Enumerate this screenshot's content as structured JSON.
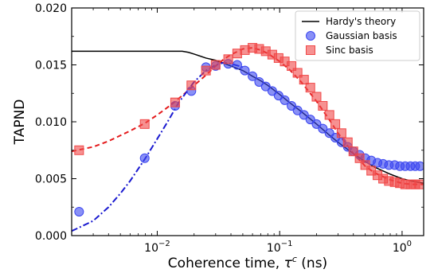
{
  "chart_data": {
    "type": "scatter",
    "xlabel_main": "Coherence time, ",
    "xlabel_symbol": "τ",
    "xlabel_sup": "c",
    "xlabel_unit": " (ns)",
    "ylabel": "TAPND",
    "x_scale": "log",
    "xlim": [
      0.002,
      1.5
    ],
    "ylim": [
      0,
      0.02
    ],
    "y_ticks": [
      "0.000",
      "0.005",
      "0.010",
      "0.015",
      "0.020"
    ],
    "x_ticks": [
      {
        "value": 0.01,
        "base": "10",
        "exp": "−2"
      },
      {
        "value": 0.1,
        "base": "10",
        "exp": "−1"
      },
      {
        "value": 1,
        "base": "10",
        "exp": "0"
      }
    ],
    "grid": false,
    "legend_position": "top-right",
    "series": [
      {
        "name": "Hardy's theory",
        "kind": "line",
        "color": "#000000",
        "x": [
          0.002,
          0.003,
          0.005,
          0.008,
          0.012,
          0.016,
          0.018,
          0.02,
          0.025,
          0.03,
          0.04,
          0.05,
          0.06,
          0.07,
          0.08,
          0.1,
          0.12,
          0.15,
          0.2,
          0.25,
          0.3,
          0.4,
          0.5,
          0.6,
          0.8,
          1.0,
          1.2,
          1.5
        ],
        "y": [
          0.0162,
          0.0162,
          0.0162,
          0.0162,
          0.0162,
          0.0162,
          0.0161,
          0.01595,
          0.0156,
          0.0154,
          0.0149,
          0.0145,
          0.014,
          0.0136,
          0.0132,
          0.0124,
          0.0117,
          0.0109,
          0.0098,
          0.0089,
          0.0082,
          0.0072,
          0.0065,
          0.006,
          0.0054,
          0.005,
          0.0048,
          0.0046
        ]
      },
      {
        "name": "Gaussian basis",
        "kind": "markers",
        "marker": "circle",
        "color": "#3b46f0",
        "x": [
          0.0023,
          0.0079,
          0.014,
          0.019,
          0.025,
          0.03,
          0.038,
          0.045,
          0.052,
          0.06,
          0.068,
          0.077,
          0.087,
          0.098,
          0.11,
          0.125,
          0.14,
          0.158,
          0.178,
          0.2,
          0.225,
          0.255,
          0.285,
          0.32,
          0.36,
          0.4,
          0.45,
          0.5,
          0.56,
          0.63,
          0.7,
          0.78,
          0.87,
          0.96,
          1.06,
          1.17,
          1.28,
          1.4
        ],
        "y": [
          0.0021,
          0.0068,
          0.0114,
          0.0127,
          0.0148,
          0.0149,
          0.0151,
          0.015,
          0.0145,
          0.014,
          0.0135,
          0.0131,
          0.0127,
          0.0123,
          0.0119,
          0.0114,
          0.011,
          0.0106,
          0.0102,
          0.0098,
          0.0094,
          0.009,
          0.0086,
          0.0082,
          0.0078,
          0.0074,
          0.0071,
          0.0068,
          0.0066,
          0.0064,
          0.0063,
          0.0062,
          0.0062,
          0.0061,
          0.0061,
          0.0061,
          0.0061,
          0.0061
        ]
      },
      {
        "name": "Sinc basis",
        "kind": "markers",
        "marker": "square",
        "color": "#f04848",
        "x": [
          0.0023,
          0.0079,
          0.014,
          0.019,
          0.025,
          0.03,
          0.038,
          0.045,
          0.052,
          0.06,
          0.068,
          0.077,
          0.087,
          0.098,
          0.11,
          0.125,
          0.14,
          0.158,
          0.178,
          0.2,
          0.225,
          0.255,
          0.285,
          0.32,
          0.36,
          0.4,
          0.45,
          0.5,
          0.56,
          0.63,
          0.7,
          0.78,
          0.87,
          0.96,
          1.06,
          1.17,
          1.28,
          1.4
        ],
        "y": [
          0.0075,
          0.0098,
          0.0117,
          0.0132,
          0.0145,
          0.015,
          0.0155,
          0.016,
          0.0163,
          0.0165,
          0.0164,
          0.0162,
          0.0159,
          0.0156,
          0.0153,
          0.0149,
          0.0143,
          0.0137,
          0.013,
          0.0122,
          0.0114,
          0.0106,
          0.0098,
          0.009,
          0.0082,
          0.0074,
          0.0068,
          0.0062,
          0.0057,
          0.0053,
          0.005,
          0.0048,
          0.0047,
          0.0046,
          0.0045,
          0.0045,
          0.0045,
          0.0045
        ]
      },
      {
        "name": "",
        "kind": "fit",
        "dash": "dashed",
        "color": "#e41a1c",
        "x": [
          0.002,
          0.003,
          0.004,
          0.006,
          0.008,
          0.01,
          0.013,
          0.016,
          0.02,
          0.025,
          0.03,
          0.035,
          0.04,
          0.05,
          0.06,
          0.07,
          0.08,
          0.1,
          0.12,
          0.15,
          0.2,
          0.25,
          0.3,
          0.4,
          0.5,
          0.6,
          0.8,
          1.0,
          1.2,
          1.5
        ],
        "y": [
          0.0074,
          0.0078,
          0.0083,
          0.0092,
          0.0099,
          0.0106,
          0.0115,
          0.0123,
          0.0132,
          0.0141,
          0.0149,
          0.0155,
          0.0159,
          0.0164,
          0.0165,
          0.0163,
          0.016,
          0.0153,
          0.0146,
          0.0135,
          0.0118,
          0.0103,
          0.009,
          0.0072,
          0.0061,
          0.0055,
          0.0049,
          0.0046,
          0.0045,
          0.0045
        ]
      },
      {
        "name": "",
        "kind": "fit",
        "dash": "dashdot",
        "color": "#1a1ad0",
        "x": [
          0.002,
          0.003,
          0.004,
          0.005,
          0.006,
          0.008,
          0.01,
          0.012,
          0.015,
          0.02,
          0.025,
          0.03,
          0.035,
          0.04,
          0.05
        ],
        "y": [
          0.0004,
          0.0013,
          0.0025,
          0.0037,
          0.0048,
          0.0068,
          0.0085,
          0.0099,
          0.0117,
          0.0135,
          0.0145,
          0.015,
          0.0152,
          0.0151,
          0.0148
        ]
      }
    ]
  }
}
